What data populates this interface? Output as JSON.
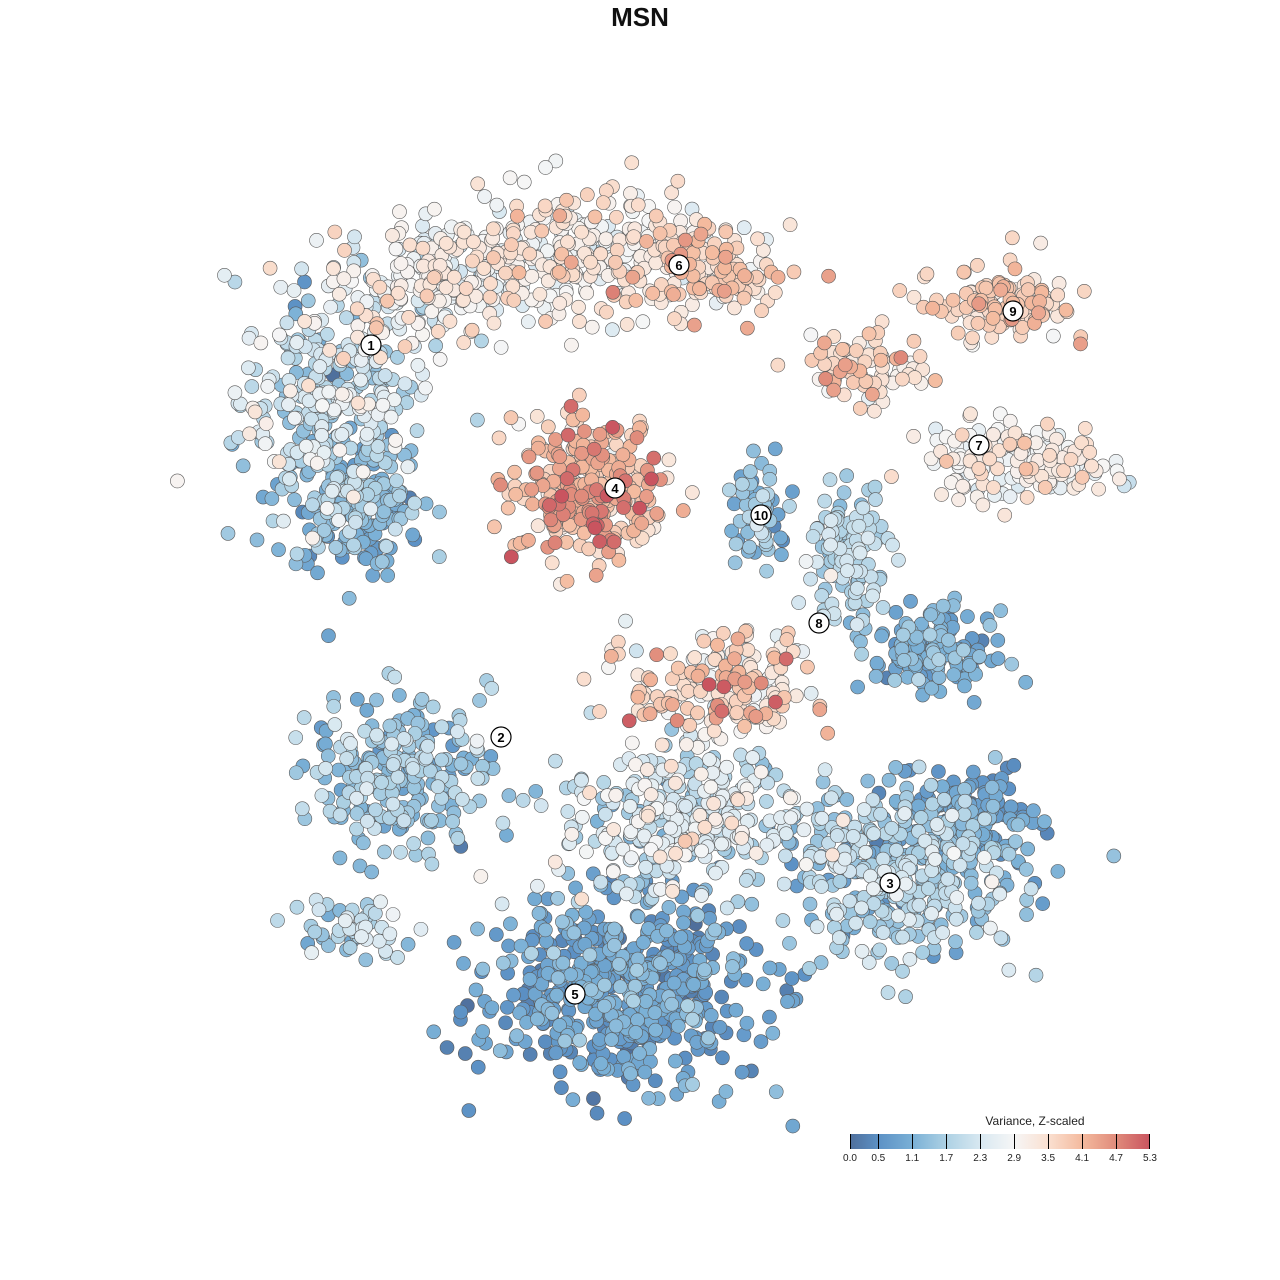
{
  "chart_data": {
    "type": "scatter",
    "title": "MSN",
    "xlabel": "",
    "ylabel": "",
    "grid": false,
    "axes_visible": false,
    "xlim": [
      -9,
      10
    ],
    "ylim": [
      -9.5,
      9.5
    ],
    "note": "Embedding of cells; each cluster summarized as a Gaussian blob of points (center, spread, count) with mean variance value.",
    "clusters": [
      {
        "id": "1a",
        "center": [
          -6.2,
          4.8
        ],
        "spread": [
          1.2,
          1.4
        ],
        "n": 300,
        "mean_value": 2.1,
        "sd_value": 0.6
      },
      {
        "id": "1b",
        "center": [
          -5.8,
          2.8
        ],
        "spread": [
          1.0,
          0.9
        ],
        "n": 200,
        "mean_value": 1.2,
        "sd_value": 0.4
      },
      {
        "id": "6a",
        "center": [
          -3.8,
          7.2
        ],
        "spread": [
          1.6,
          0.8
        ],
        "n": 250,
        "mean_value": 2.8,
        "sd_value": 0.5
      },
      {
        "id": "6b",
        "center": [
          -1.2,
          7.8
        ],
        "spread": [
          1.6,
          0.8
        ],
        "n": 250,
        "mean_value": 3.0,
        "sd_value": 0.5
      },
      {
        "id": "6c",
        "center": [
          1.2,
          7.4
        ],
        "spread": [
          1.2,
          0.6
        ],
        "n": 150,
        "mean_value": 3.5,
        "sd_value": 0.5
      },
      {
        "id": "4",
        "center": [
          -1.0,
          3.0
        ],
        "spread": [
          1.0,
          0.9
        ],
        "n": 300,
        "mean_value": 4.0,
        "sd_value": 0.6
      },
      {
        "id": "9",
        "center": [
          7.2,
          6.7
        ],
        "spread": [
          0.9,
          0.5
        ],
        "n": 120,
        "mean_value": 3.6,
        "sd_value": 0.4
      },
      {
        "id": "arm",
        "center": [
          4.6,
          5.4
        ],
        "spread": [
          0.8,
          0.5
        ],
        "n": 80,
        "mean_value": 3.6,
        "sd_value": 0.5
      },
      {
        "id": "7",
        "center": [
          7.6,
          3.6
        ],
        "spread": [
          1.2,
          0.5
        ],
        "n": 180,
        "mean_value": 3.0,
        "sd_value": 0.4
      },
      {
        "id": "10",
        "center": [
          2.4,
          2.6
        ],
        "spread": [
          0.5,
          0.6
        ],
        "n": 60,
        "mean_value": 1.4,
        "sd_value": 0.4
      },
      {
        "id": "8a",
        "center": [
          4.2,
          1.6
        ],
        "spread": [
          0.5,
          1.0
        ],
        "n": 120,
        "mean_value": 1.8,
        "sd_value": 0.4
      },
      {
        "id": "8b",
        "center": [
          5.8,
          -0.2
        ],
        "spread": [
          0.8,
          0.5
        ],
        "n": 150,
        "mean_value": 1.0,
        "sd_value": 0.3
      },
      {
        "id": "mid",
        "center": [
          1.6,
          -1.0
        ],
        "spread": [
          1.2,
          0.8
        ],
        "n": 200,
        "mean_value": 3.4,
        "sd_value": 0.7
      },
      {
        "id": "2",
        "center": [
          -4.8,
          -2.6
        ],
        "spread": [
          1.2,
          1.0
        ],
        "n": 250,
        "mean_value": 1.5,
        "sd_value": 0.4
      },
      {
        "id": "small",
        "center": [
          -5.8,
          -5.7
        ],
        "spread": [
          0.8,
          0.4
        ],
        "n": 50,
        "mean_value": 1.8,
        "sd_value": 0.5
      },
      {
        "id": "band",
        "center": [
          0.8,
          -3.6
        ],
        "spread": [
          1.6,
          1.0
        ],
        "n": 350,
        "mean_value": 2.2,
        "sd_value": 0.6
      },
      {
        "id": "3a",
        "center": [
          5.2,
          -4.6
        ],
        "spread": [
          1.6,
          1.1
        ],
        "n": 400,
        "mean_value": 1.6,
        "sd_value": 0.5
      },
      {
        "id": "3b",
        "center": [
          6.6,
          -3.6
        ],
        "spread": [
          0.8,
          0.6
        ],
        "n": 150,
        "mean_value": 0.8,
        "sd_value": 0.3
      },
      {
        "id": "5",
        "center": [
          -0.4,
          -7.0
        ],
        "spread": [
          1.8,
          1.2
        ],
        "n": 600,
        "mean_value": 0.8,
        "sd_value": 0.35
      }
    ],
    "cluster_labels": [
      {
        "text": "1",
        "pos": [
          -5.38,
          5.9
        ]
      },
      {
        "text": "2",
        "pos": [
          -2.78,
          -1.94
        ]
      },
      {
        "text": "3",
        "pos": [
          5.0,
          -4.86
        ]
      },
      {
        "text": "4",
        "pos": [
          -0.5,
          3.04
        ]
      },
      {
        "text": "5",
        "pos": [
          -1.3,
          -7.08
        ]
      },
      {
        "text": "6",
        "pos": [
          0.78,
          7.5
        ]
      },
      {
        "text": "7",
        "pos": [
          6.78,
          3.9
        ]
      },
      {
        "text": "8",
        "pos": [
          3.58,
          0.34
        ]
      },
      {
        "text": "9",
        "pos": [
          7.46,
          6.58
        ]
      },
      {
        "text": "10",
        "pos": [
          2.42,
          2.5
        ]
      }
    ],
    "legend": {
      "title": "Variance, Z-scaled",
      "placement": "bottom-right",
      "range": [
        0,
        5.3
      ],
      "ticks": [
        "0.0",
        "0.5",
        "1.1",
        "1.7",
        "2.3",
        "2.9",
        "3.5",
        "4.1",
        "4.7",
        "5.3"
      ],
      "colors": [
        "#4f6f9c",
        "#5c91c5",
        "#7ab0d6",
        "#add1e4",
        "#d8e8f1",
        "#f6f6f6",
        "#fae0d1",
        "#f4ba9e",
        "#e08b7b",
        "#c9545f"
      ]
    }
  }
}
